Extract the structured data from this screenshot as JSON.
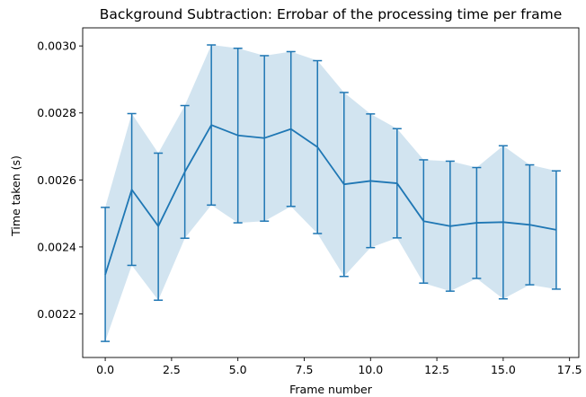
{
  "chart_data": {
    "type": "line",
    "title": "Background Subtraction: Errobar of the processing time per frame",
    "xlabel": "Frame number",
    "ylabel": "Time taken (s)",
    "xlim": [
      -0.85,
      17.85
    ],
    "ylim": [
      0.00207,
      0.003054
    ],
    "x_ticks": [
      0.0,
      2.5,
      5.0,
      7.5,
      10.0,
      12.5,
      15.0,
      17.5
    ],
    "x_tick_labels": [
      "0.0",
      "2.5",
      "5.0",
      "7.5",
      "10.0",
      "12.5",
      "15.0",
      "17.5"
    ],
    "y_ticks": [
      0.0022,
      0.0024,
      0.0026,
      0.0028,
      0.003
    ],
    "y_tick_labels": [
      "0.0022",
      "0.0024",
      "0.0026",
      "0.0028",
      "0.0030"
    ],
    "grid": false,
    "colors": {
      "line": "#1f77b4",
      "band": "#1f77b4",
      "band_opacity": 0.2
    },
    "series": [
      {
        "x": [
          0,
          1,
          2,
          3,
          4,
          5,
          6,
          7,
          8,
          9,
          10,
          11,
          12,
          13,
          14,
          15,
          16,
          17
        ],
        "mean": [
          0.002317,
          0.002571,
          0.002462,
          0.002624,
          0.002764,
          0.002733,
          0.002725,
          0.002752,
          0.002698,
          0.002587,
          0.002597,
          0.00259,
          0.002477,
          0.002462,
          0.002472,
          0.002474,
          0.002466,
          0.002451
        ],
        "lower": [
          0.002118,
          0.002345,
          0.002241,
          0.002426,
          0.002525,
          0.002472,
          0.002477,
          0.002521,
          0.00244,
          0.002312,
          0.002398,
          0.002427,
          0.002292,
          0.002268,
          0.002306,
          0.002245,
          0.002287,
          0.002274
        ],
        "upper": [
          0.002518,
          0.002798,
          0.00268,
          0.002822,
          0.003003,
          0.002993,
          0.002971,
          0.002983,
          0.002956,
          0.002861,
          0.002797,
          0.002753,
          0.00266,
          0.002656,
          0.002637,
          0.002702,
          0.002645,
          0.002627
        ]
      }
    ]
  }
}
